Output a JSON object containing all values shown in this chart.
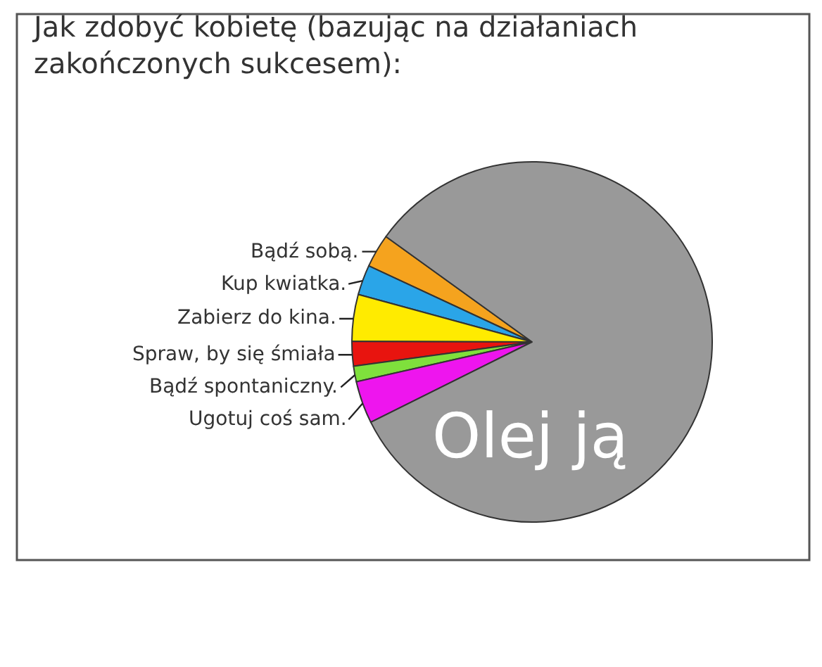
{
  "chart_data": {
    "type": "pie",
    "title": "Jak zdobyć kobietę (bazując na działaniach zakończonych sukcesem):",
    "categories": [
      "Bądź sobą.",
      "Kup kwiatka.",
      "Zabierz do kina.",
      "Spraw, by się śmiała",
      "Bądź spontaniczny.",
      "Ugotuj coś sam.",
      "Olej ją"
    ],
    "values": [
      3.0,
      2.7,
      4.2,
      2.2,
      1.4,
      3.8,
      82.7
    ],
    "colors": [
      "#f5a31e",
      "#2aa5e8",
      "#ffeb00",
      "#e8140f",
      "#7fe03c",
      "#ee15ee",
      "#999999"
    ],
    "legend": false
  }
}
